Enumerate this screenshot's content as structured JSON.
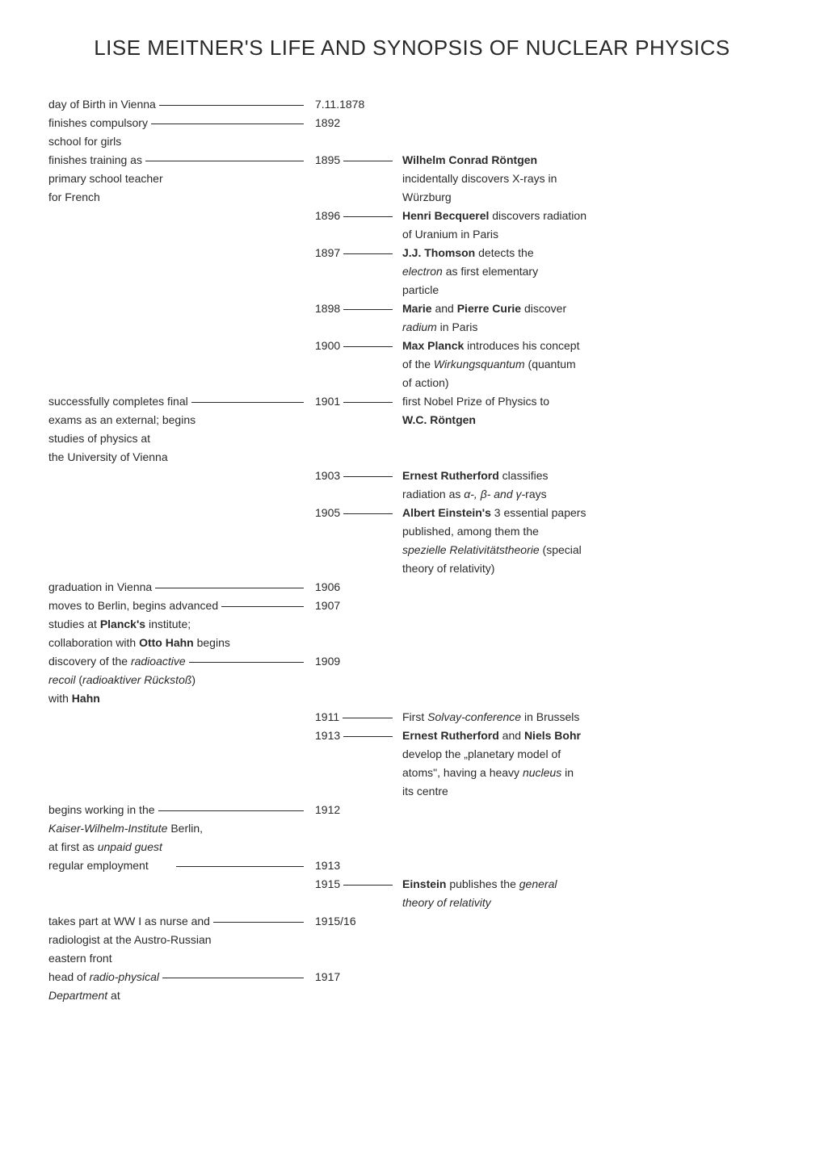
{
  "title": "LISE MEITNER'S LIFE AND SYNOPSIS OF NUCLEAR PHYSICS",
  "rows": [
    {
      "left": "day of Birth in Vienna",
      "leftFill": true,
      "year": "7.11.1878",
      "yearFill": false,
      "right": ""
    },
    {
      "left": "finishes compulsory",
      "leftFill": true,
      "year": "1892",
      "yearFill": false,
      "right": ""
    },
    {
      "left": "school for girls",
      "leftFill": false,
      "year": "",
      "yearFill": false,
      "right": ""
    },
    {
      "left": "finishes training as",
      "leftFill": true,
      "year": "1895",
      "yearFill": true,
      "rightHtml": "<b>Wilhelm Conrad Röntgen</b>"
    },
    {
      "left": "primary school teacher",
      "leftFill": false,
      "year": "",
      "yearFill": false,
      "right": "incidentally discovers X-rays in"
    },
    {
      "left": "for French",
      "leftFill": false,
      "year": "",
      "yearFill": false,
      "right": "Würzburg"
    },
    {
      "left": "",
      "leftFill": false,
      "year": "1896",
      "yearFill": true,
      "rightHtml": "<b>Henri Becquerel</b> discovers radiation"
    },
    {
      "left": "",
      "leftFill": false,
      "year": "",
      "yearFill": false,
      "right": "of Uranium in Paris"
    },
    {
      "left": "",
      "leftFill": false,
      "year": "1897",
      "yearFill": true,
      "rightHtml": "<b>J.J. Thomson</b> detects the"
    },
    {
      "left": "",
      "leftFill": false,
      "year": "",
      "yearFill": false,
      "rightHtml": "<i>electron</i> as first elementary"
    },
    {
      "left": "",
      "leftFill": false,
      "year": "",
      "yearFill": false,
      "right": "particle"
    },
    {
      "left": "",
      "leftFill": false,
      "year": "1898",
      "yearFill": true,
      "rightHtml": "<b>Marie</b> and <b>Pierre Curie</b> discover"
    },
    {
      "left": "",
      "leftFill": false,
      "year": "",
      "yearFill": false,
      "rightHtml": "<i>radium</i> in Paris"
    },
    {
      "left": "",
      "leftFill": false,
      "year": "1900",
      "yearFill": true,
      "rightHtml": "<b>Max Planck</b> introduces his concept"
    },
    {
      "left": "",
      "leftFill": false,
      "year": "",
      "yearFill": false,
      "rightHtml": "of the <i>Wirkungsquantum</i> (quantum"
    },
    {
      "left": "",
      "leftFill": false,
      "year": "",
      "yearFill": false,
      "right": "of action)"
    },
    {
      "left": "successfully completes final",
      "leftFill": true,
      "year": "1901",
      "yearFill": true,
      "right": "first Nobel Prize of Physics to"
    },
    {
      "left": "exams as an external; begins",
      "leftFill": false,
      "year": "",
      "yearFill": false,
      "rightHtml": "<b>W.C. Röntgen</b>"
    },
    {
      "left": "studies of physics at",
      "leftFill": false,
      "year": "",
      "yearFill": false,
      "right": ""
    },
    {
      "left": "the University of Vienna",
      "leftFill": false,
      "year": "",
      "yearFill": false,
      "right": ""
    },
    {
      "left": "",
      "leftFill": false,
      "year": "1903",
      "yearFill": true,
      "rightHtml": "<b>Ernest Rutherford</b> classifies"
    },
    {
      "left": "",
      "leftFill": false,
      "year": "",
      "yearFill": false,
      "rightHtml": "radiation as <i>α-, β- and γ-</i>rays"
    },
    {
      "left": "",
      "leftFill": false,
      "year": "1905",
      "yearFill": true,
      "rightHtml": "<b>Albert Einstein's</b> 3 essential papers"
    },
    {
      "left": "",
      "leftFill": false,
      "year": "",
      "yearFill": false,
      "right": "published, among them the"
    },
    {
      "left": "",
      "leftFill": false,
      "year": "",
      "yearFill": false,
      "rightHtml": "<i>spezielle Relativitätstheorie</i> (special"
    },
    {
      "left": "",
      "leftFill": false,
      "year": "",
      "yearFill": false,
      "right": "theory of relativity)"
    },
    {
      "left": "graduation in Vienna",
      "leftFill": true,
      "year": "1906",
      "yearFill": false,
      "right": ""
    },
    {
      "left": "moves to Berlin, begins advanced",
      "leftFill": true,
      "year": "1907",
      "yearFill": false,
      "right": ""
    },
    {
      "left": "studies at <b>Planck's</b> institute;",
      "leftHtml": true,
      "leftFill": false,
      "year": "",
      "yearFill": false,
      "right": ""
    },
    {
      "left": "collaboration with <b>Otto Hahn</b> begins",
      "leftHtml": true,
      "leftFill": false,
      "year": "",
      "yearFill": false,
      "right": ""
    },
    {
      "left": "discovery of the <i>radioactive</i>",
      "leftHtml": true,
      "leftFill": true,
      "year": "1909",
      "yearFill": false,
      "right": ""
    },
    {
      "left": "<i>recoil</i> (<i>radioaktiver Rückstoß</i>)",
      "leftHtml": true,
      "leftFill": false,
      "year": "",
      "yearFill": false,
      "right": ""
    },
    {
      "left": "with <b>Hahn</b>",
      "leftHtml": true,
      "leftFill": false,
      "year": "",
      "yearFill": false,
      "right": ""
    },
    {
      "left": "",
      "leftFill": false,
      "year": "1911",
      "yearFill": true,
      "rightHtml": "First <i>Solvay-conference</i> in Brussels"
    },
    {
      "left": "",
      "leftFill": false,
      "year": "1913",
      "yearFill": true,
      "rightHtml": "<b>Ernest Rutherford</b> and <b>Niels Bohr</b>"
    },
    {
      "left": "",
      "leftFill": false,
      "year": "",
      "yearFill": false,
      "right": "develop the „planetary model of"
    },
    {
      "left": "",
      "leftFill": false,
      "year": "",
      "yearFill": false,
      "rightHtml": "atoms\", having a heavy <i>nucleus</i> in"
    },
    {
      "left": "",
      "leftFill": false,
      "year": "",
      "yearFill": false,
      "right": "its centre"
    },
    {
      "left": "begins working in the",
      "leftFill": true,
      "year": "1912",
      "yearFill": false,
      "right": ""
    },
    {
      "left": "<i>Kaiser-Wilhelm-Institute</i> Berlin,",
      "leftHtml": true,
      "leftFill": false,
      "year": "",
      "yearFill": false,
      "right": ""
    },
    {
      "left": "at first as <i>unpaid guest</i>",
      "leftHtml": true,
      "leftFill": false,
      "year": "",
      "yearFill": false,
      "right": ""
    },
    {
      "left": "regular employment",
      "leftFill": true,
      "leftPad": true,
      "year": "1913",
      "yearFill": false,
      "right": ""
    },
    {
      "left": "",
      "leftFill": false,
      "year": "1915",
      "yearFill": true,
      "rightHtml": "<b>Einstein</b> publishes the <i>general</i>"
    },
    {
      "left": "",
      "leftFill": false,
      "year": "",
      "yearFill": false,
      "rightHtml": "<i>theory of relativity</i>"
    },
    {
      "left": "takes part at WW I as nurse and",
      "leftFill": true,
      "year": "1915/16",
      "yearFill": false,
      "right": ""
    },
    {
      "left": "radiologist at the Austro-Russian",
      "leftFill": false,
      "year": "",
      "yearFill": false,
      "right": ""
    },
    {
      "left": "eastern front",
      "leftFill": false,
      "year": "",
      "yearFill": false,
      "right": ""
    },
    {
      "left": "head of <i>radio-physical</i>",
      "leftHtml": true,
      "leftFill": true,
      "year": "1917",
      "yearFill": false,
      "right": ""
    },
    {
      "left": "<i>Department</i> at",
      "leftHtml": true,
      "leftFill": false,
      "year": "",
      "yearFill": false,
      "right": ""
    }
  ]
}
